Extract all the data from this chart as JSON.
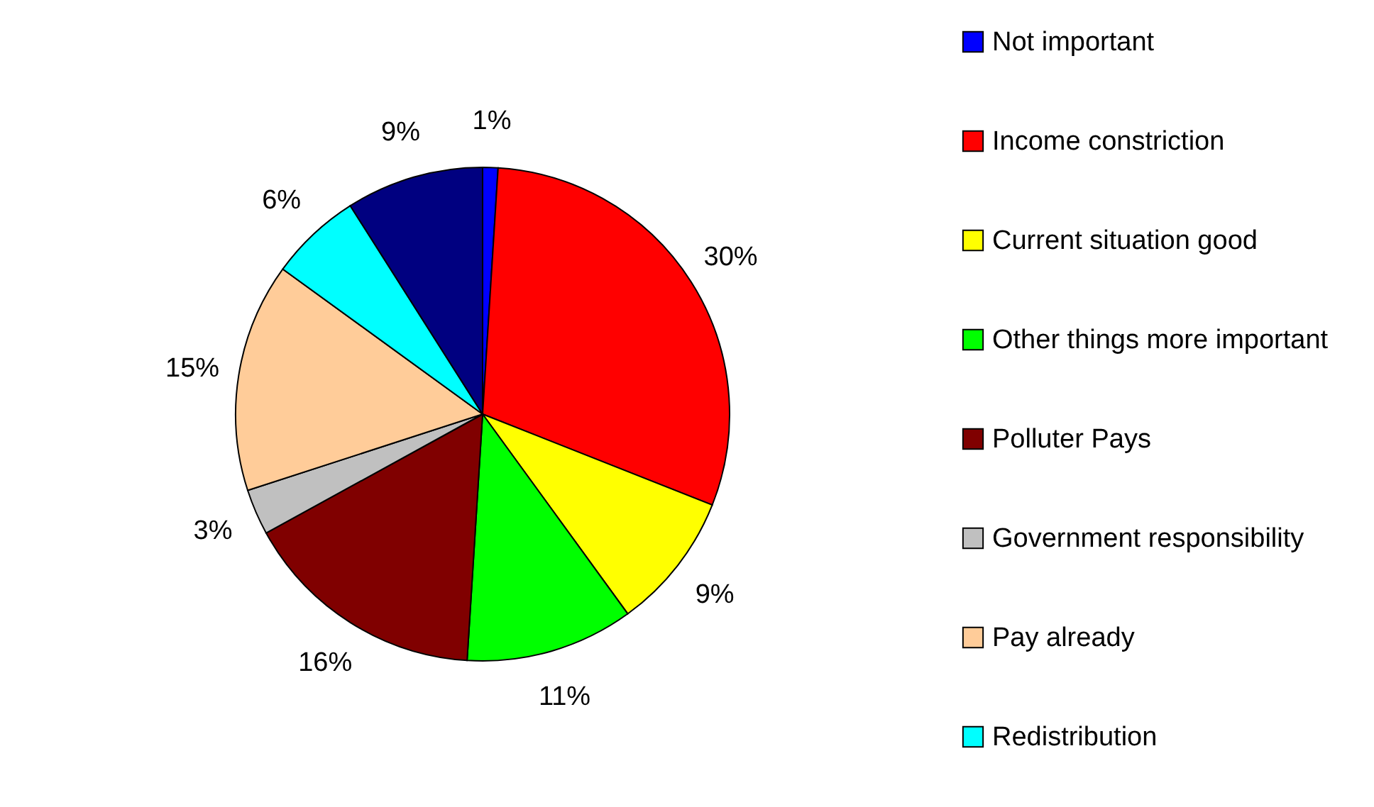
{
  "chart_data": {
    "type": "pie",
    "categories": [
      "Not important",
      "Income constriction",
      "Current situation good",
      "Other things more important",
      "Polluter Pays",
      "Government responsibility",
      "Pay already",
      "Redistribution",
      null
    ],
    "values": [
      1,
      30,
      9,
      11,
      16,
      3,
      15,
      6,
      9
    ],
    "value_labels": [
      "1%",
      "30%",
      "9%",
      "11%",
      "16%",
      "3%",
      "15%",
      "6%",
      "9%"
    ],
    "colors": [
      "#0000ff",
      "#ff0000",
      "#ffff00",
      "#00ff00",
      "#800000",
      "#c0c0c0",
      "#ffcc99",
      "#00ffff",
      "#000080"
    ],
    "legend": "right"
  }
}
